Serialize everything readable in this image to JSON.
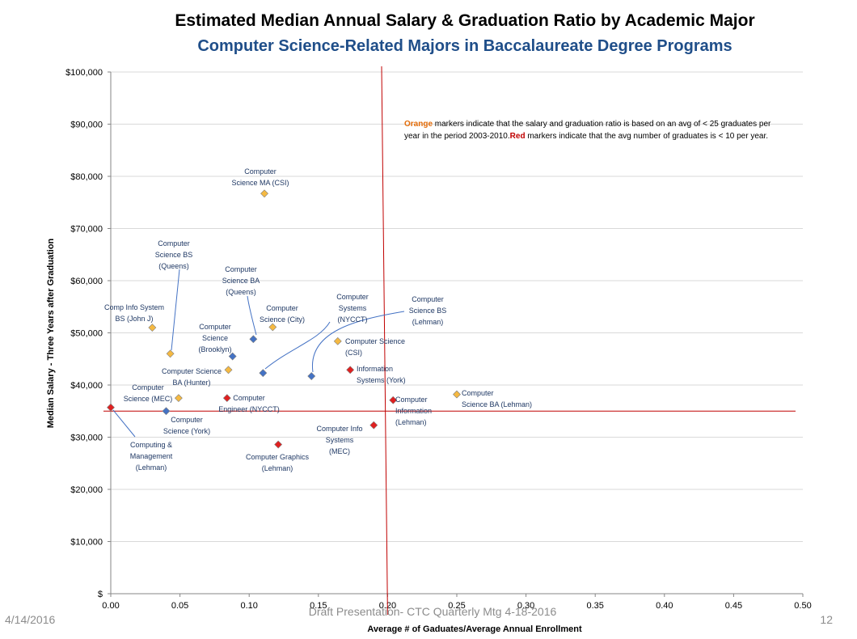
{
  "slide": {
    "title": "Estimated Median Annual Salary & Graduation Ratio by Academic Major",
    "subtitle": "Computer Science-Related Majors in Baccalaureate Degree Programs",
    "date": "4/14/2016",
    "footer": "Draft Presentation- CTC Quarterly Mtg 4-18-2016",
    "page": "12"
  },
  "colors": {
    "orange": "#f5b942",
    "blue": "#4472c4",
    "red": "#e02020",
    "refline": "#c00000",
    "notice_orange": "#e36c09",
    "notice_red": "#c00000"
  },
  "notice": {
    "line1_orange": "Orange",
    "line1_rest": " markers indicate that the salary and graduation ratio is based on an avg of  < 25 graduates per",
    "line2_a": "year in  the period 2003-2010.",
    "line2_red": "Red",
    "line2_b": " markers indicate that the avg number of graduates is < 10 per year."
  },
  "chart_data": {
    "type": "scatter",
    "xlabel": "Average # of Gaduates/Average Annual Enrollment",
    "ylabel": "Median Salary - Three Years after Graduation",
    "xlim": [
      0,
      0.5
    ],
    "ylim": [
      0,
      100000
    ],
    "x_ticks": [
      "0.00",
      "0.05",
      "0.10",
      "0.15",
      "0.20",
      "0.25",
      "0.30",
      "0.35",
      "0.40",
      "0.45",
      "0.50"
    ],
    "y_ticks": [
      "$",
      "$10,000",
      "$20,000",
      "$30,000",
      "$40,000",
      "$50,000",
      "$60,000",
      "$70,000",
      "$80,000",
      "$90,000",
      "$100,000"
    ],
    "grid": true,
    "ref_lines": {
      "x": 0.2,
      "y": 35000
    },
    "points": [
      {
        "x": 0.111,
        "y": 76700,
        "color": "orange",
        "label": [
          "Computer",
          "Science MA (CSI)"
        ]
      },
      {
        "x": 0.043,
        "y": 46000,
        "color": "orange",
        "label": [
          "Computer",
          "Science BS",
          "(Queens)"
        ]
      },
      {
        "x": 0.03,
        "y": 51000,
        "color": "orange",
        "label": [
          "Comp Info System",
          "BS (John J)"
        ]
      },
      {
        "x": 0.103,
        "y": 48800,
        "color": "blue",
        "label": [
          "Computer",
          "Science BA",
          "(Queens)"
        ]
      },
      {
        "x": 0.117,
        "y": 51100,
        "color": "orange",
        "label": [
          "Computer",
          "Science (City)"
        ]
      },
      {
        "x": 0.088,
        "y": 45500,
        "color": "blue",
        "label": [
          "Computer",
          "Science",
          "(Brooklyn)"
        ]
      },
      {
        "x": 0.11,
        "y": 42300,
        "color": "blue",
        "label": [
          "Computer",
          "Systems",
          "(NYCCT)"
        ]
      },
      {
        "x": 0.145,
        "y": 41700,
        "color": "blue",
        "label": [
          "Computer",
          "Science BS",
          "(Lehman)"
        ]
      },
      {
        "x": 0.164,
        "y": 48400,
        "color": "orange",
        "label": [
          "Computer Science",
          "(CSI)"
        ]
      },
      {
        "x": 0.173,
        "y": 42900,
        "color": "red",
        "label": [
          "Information",
          "Systems (York)"
        ]
      },
      {
        "x": 0.085,
        "y": 42900,
        "color": "orange",
        "label": [
          "Computer Science",
          "BA (Hunter)"
        ]
      },
      {
        "x": 0.049,
        "y": 37500,
        "color": "orange",
        "label": [
          "Computer",
          "Science (MEC)"
        ]
      },
      {
        "x": 0.084,
        "y": 37500,
        "color": "red",
        "label": [
          "Computer",
          "Engineer (NYCCT)"
        ]
      },
      {
        "x": 0.04,
        "y": 35000,
        "color": "blue",
        "label": [
          "Computer",
          "Science (York)"
        ]
      },
      {
        "x": 0.0,
        "y": 35700,
        "color": "red",
        "label": [
          "Computing &",
          "Management",
          "(Lehman)"
        ]
      },
      {
        "x": 0.204,
        "y": 37100,
        "color": "red",
        "label": [
          "Computer",
          "Information",
          "(Lehman)"
        ]
      },
      {
        "x": 0.25,
        "y": 38200,
        "color": "orange",
        "label": [
          "Computer",
          "Science BA (Lehman)"
        ]
      },
      {
        "x": 0.19,
        "y": 32300,
        "color": "red",
        "label": [
          "Computer Info",
          "Systems",
          "(MEC)"
        ]
      },
      {
        "x": 0.121,
        "y": 28600,
        "color": "red",
        "label": [
          "Computer Graphics",
          "(Lehman)"
        ]
      }
    ]
  }
}
